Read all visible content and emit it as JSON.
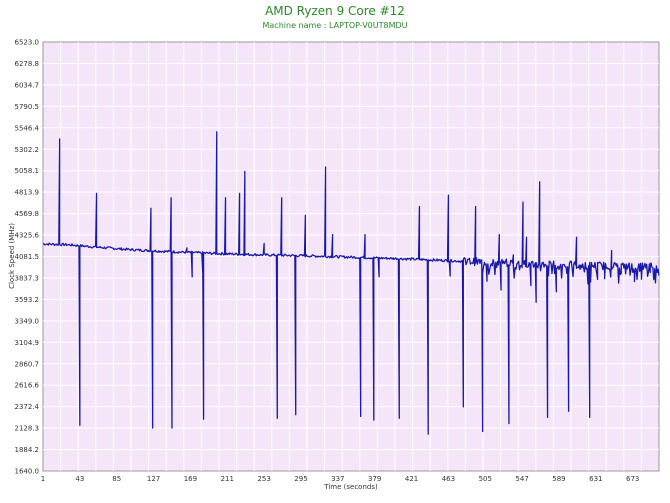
{
  "chart_data": {
    "type": "line",
    "title": "AMD Ryzen 9 Core #12",
    "subtitle": "Machine name : LAPTOP-V0UT8MDU",
    "xlabel": "Time (seconds)",
    "ylabel": "Clock Speed (MHz)",
    "xlim": [
      1,
      703
    ],
    "ylim": [
      1640.0,
      6523.0
    ],
    "x_ticks": [
      "1",
      "43",
      "85",
      "127",
      "169",
      "211",
      "253",
      "295",
      "337",
      "379",
      "421",
      "463",
      "505",
      "547",
      "589",
      "631",
      "673"
    ],
    "y_ticks": [
      "1640.0",
      "1884.2",
      "2128.3",
      "2372.4",
      "2616.6",
      "2860.7",
      "3104.9",
      "3349.0",
      "3593.2",
      "3837.3",
      "4081.5",
      "4325.6",
      "4569.8",
      "4813.9",
      "5058.1",
      "5302.2",
      "5546.4",
      "5790.5",
      "6034.7",
      "6278.8",
      "6523.0"
    ],
    "grid": true,
    "colors": {
      "line": "#1a1aa8",
      "plot_bg": "#f4e6f8",
      "grid": "#ffffff",
      "title": "#2a8a2a"
    },
    "series": [
      {
        "baseline": [
          [
            1,
            4225
          ],
          [
            30,
            4215
          ],
          [
            60,
            4190
          ],
          [
            100,
            4160
          ],
          [
            150,
            4135
          ],
          [
            200,
            4115
          ],
          [
            250,
            4100
          ],
          [
            300,
            4090
          ],
          [
            350,
            4075
          ],
          [
            400,
            4060
          ],
          [
            450,
            4040
          ],
          [
            500,
            4020
          ],
          [
            550,
            4000
          ],
          [
            600,
            3985
          ],
          [
            650,
            3975
          ],
          [
            703,
            3965
          ]
        ],
        "spikes": [
          [
            20,
            5420
          ],
          [
            20,
            4990
          ],
          [
            43,
            2160
          ],
          [
            62,
            4800
          ],
          [
            124,
            4630
          ],
          [
            126,
            2130
          ],
          [
            147,
            4750
          ],
          [
            148,
            2130
          ],
          [
            165,
            4180
          ],
          [
            171,
            3850
          ],
          [
            183,
            3900
          ],
          [
            184,
            2230
          ],
          [
            199,
            5500
          ],
          [
            209,
            4750
          ],
          [
            225,
            4800
          ],
          [
            231,
            5050
          ],
          [
            253,
            4230
          ],
          [
            268,
            2240
          ],
          [
            273,
            4750
          ],
          [
            289,
            2280
          ],
          [
            300,
            4550
          ],
          [
            323,
            5100
          ],
          [
            331,
            4330
          ],
          [
            363,
            2260
          ],
          [
            368,
            4330
          ],
          [
            378,
            2220
          ],
          [
            384,
            3850
          ],
          [
            407,
            2240
          ],
          [
            430,
            4650
          ],
          [
            440,
            2060
          ],
          [
            463,
            4780
          ],
          [
            465,
            3860
          ],
          [
            480,
            2370
          ],
          [
            494,
            4650
          ],
          [
            502,
            2090
          ],
          [
            507,
            3800
          ],
          [
            521,
            4330
          ],
          [
            523,
            3700
          ],
          [
            532,
            2180
          ],
          [
            537,
            4100
          ],
          [
            548,
            4700
          ],
          [
            552,
            4300
          ],
          [
            557,
            3750
          ],
          [
            563,
            3560
          ],
          [
            567,
            4930
          ],
          [
            576,
            2250
          ],
          [
            581,
            3900
          ],
          [
            586,
            3680
          ],
          [
            600,
            2320
          ],
          [
            609,
            4300
          ],
          [
            622,
            3770
          ],
          [
            624,
            2250
          ],
          [
            633,
            3820
          ],
          [
            641,
            3900
          ],
          [
            649,
            4150
          ],
          [
            655,
            4000
          ],
          [
            660,
            3890
          ],
          [
            675,
            3880
          ],
          [
            683,
            3870
          ],
          [
            688,
            3950
          ],
          [
            693,
            3900
          ],
          [
            698,
            3860
          ]
        ]
      }
    ]
  }
}
